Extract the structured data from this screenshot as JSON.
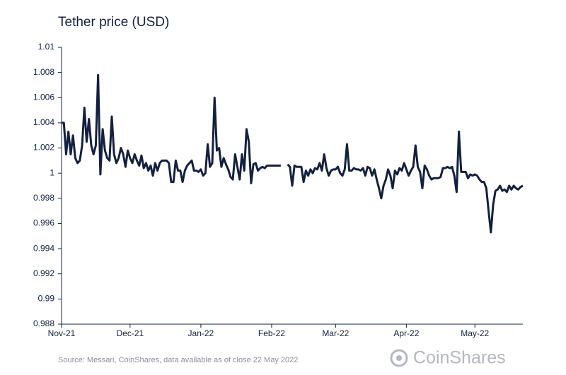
{
  "chart_data": {
    "type": "line",
    "title": "Tether price (USD)",
    "source": "Source: Messari, CoinShares, data available as of close 22 May 2022",
    "brand": "CoinShares",
    "color": "#13203f",
    "categories": [
      "Nov-21",
      null,
      null,
      null,
      null,
      null,
      null,
      null,
      null,
      null,
      null,
      null,
      null,
      null,
      null,
      null,
      null,
      null,
      null,
      null,
      null,
      null,
      null,
      null,
      null,
      null,
      null,
      null,
      null,
      null,
      "Dec-21",
      null,
      null,
      null,
      null,
      null,
      null,
      null,
      null,
      null,
      null,
      null,
      null,
      null,
      null,
      null,
      null,
      null,
      null,
      null,
      null,
      null,
      null,
      null,
      null,
      null,
      null,
      null,
      null,
      null,
      null,
      "Jan-22",
      null,
      null,
      null,
      null,
      null,
      null,
      null,
      null,
      null,
      null,
      null,
      null,
      null,
      null,
      null,
      null,
      null,
      null,
      null,
      null,
      null,
      null,
      null,
      null,
      null,
      null,
      null,
      null,
      null,
      null,
      "Feb-22",
      null,
      null,
      null,
      null,
      null,
      null,
      null,
      null,
      null,
      null,
      null,
      null,
      null,
      null,
      null,
      null,
      null,
      null,
      null,
      null,
      null,
      null,
      null,
      null,
      null,
      null,
      null,
      "Mar-22",
      null,
      null,
      null,
      null,
      null,
      null,
      null,
      null,
      null,
      null,
      null,
      null,
      null,
      null,
      null,
      null,
      null,
      null,
      null,
      null,
      null,
      null,
      null,
      null,
      null,
      null,
      null,
      null,
      null,
      null,
      "Apr-22",
      null,
      null,
      null,
      null,
      null,
      null,
      null,
      null,
      null,
      null,
      null,
      null,
      null,
      null,
      null,
      null,
      null,
      null,
      null,
      null,
      null,
      null,
      null,
      null,
      null,
      null,
      null,
      null,
      null,
      "May-22",
      null,
      null,
      null,
      null,
      null,
      null,
      null,
      null,
      null,
      null,
      null,
      null,
      null,
      null,
      null,
      null,
      null,
      null,
      null,
      null,
      null
    ],
    "values": [
      1.004,
      1.004,
      1.0015,
      1.0033,
      1.0015,
      1.003,
      1.0012,
      1.0008,
      1.001,
      1.0022,
      1.0052,
      1.0025,
      1.0043,
      1.0022,
      1.0015,
      1.0022,
      1.0078,
      0.9999,
      1.0035,
      1.0018,
      1.0012,
      1.001,
      1.0045,
      1.0015,
      1.0008,
      1.0012,
      1.002,
      1.0015,
      1.0005,
      1.0018,
      1.0012,
      1.0008,
      1.0015,
      1.001,
      1.0006,
      1.0014,
      1.0004,
      1.0008,
      1.0002,
      1.0006,
      0.9998,
      1.0008,
      1.0002,
      1.0008,
      1.001,
      1.001,
      1.001,
      1.0008,
      0.9993,
      0.9993,
      1.001,
      1.0002,
      1.0002,
      0.9993,
      1.0002,
      1.0006,
      1.0008,
      1.001,
      1.0002,
      1.0002,
      1.0001,
      1.0003,
      0.9998,
      1.0,
      1.0023,
      1.0005,
      1.0008,
      1.006,
      1.0018,
      1.002,
      1.0005,
      1.0012,
      1.0007,
      1.0003,
      0.9997,
      0.9995,
      1.0015,
      1.0005,
      0.9995,
      1.0015,
      1.0002,
      1.0035,
      1.0025,
      0.9992,
      1.0007,
      1.0008,
      1.0002,
      1.0004,
      1.0005,
      1.0004,
      1.0006,
      1.0006,
      1.0006,
      1.0006,
      1.0006,
      1.0006,
      1.0006,
      null,
      null,
      1.0007,
      1.0005,
      0.999,
      1.0006,
      1.0005,
      1.0005,
      1.0005,
      0.9993,
      1.0002,
      0.9998,
      1.0003,
      1.0,
      1.0004,
      1.0003,
      1.0008,
      1.0002,
      1.0015,
      1.0004,
      0.9998,
      1.0002,
      1.0003,
      1.0003,
      1.0005,
      1.0,
      0.9998,
      1.0003,
      1.0023,
      1.0002,
      1.0002,
      1.0004,
      1.0003,
      1.0003,
      1.0002,
      1.0004,
      0.9998,
      1.0005,
      1.0004,
      0.9998,
      1.0003,
      0.9995,
      0.9988,
      0.998,
      0.999,
      0.9995,
      1.0003,
      0.9998,
      0.9988,
      1.0002,
      0.9999,
      1.0004,
      1.0002,
      1.0008,
      1.0003,
      0.9998,
      1.0002,
      1.0005,
      1.0022,
      1.0005,
      1.0001,
      0.9988,
      1.0006,
      1.0003,
      0.9998,
      0.9995,
      0.9996,
      0.9996,
      0.9996,
      0.9997,
      1.0004,
      1.0004,
      1.0005,
      1.0004,
      1.0005,
      0.9998,
      0.9985,
      1.0033,
      1.0001,
      1.0001,
      1.0001,
      0.9996,
      0.9999,
      0.9998,
      0.9999,
      0.9998,
      0.9995,
      0.9993,
      0.9993,
      0.9988,
      0.997,
      0.9953,
      0.9975,
      0.9986,
      0.9987,
      0.999,
      0.9986,
      0.9987,
      0.9985,
      0.999,
      0.9987,
      0.999,
      0.9988,
      0.9987,
      0.9989,
      0.999
    ],
    "ylim": [
      0.988,
      1.01
    ],
    "yticks": [
      0.988,
      0.99,
      0.992,
      0.994,
      0.996,
      0.998,
      1,
      1.002,
      1.004,
      1.006,
      1.008,
      1.01
    ],
    "grid": false
  }
}
